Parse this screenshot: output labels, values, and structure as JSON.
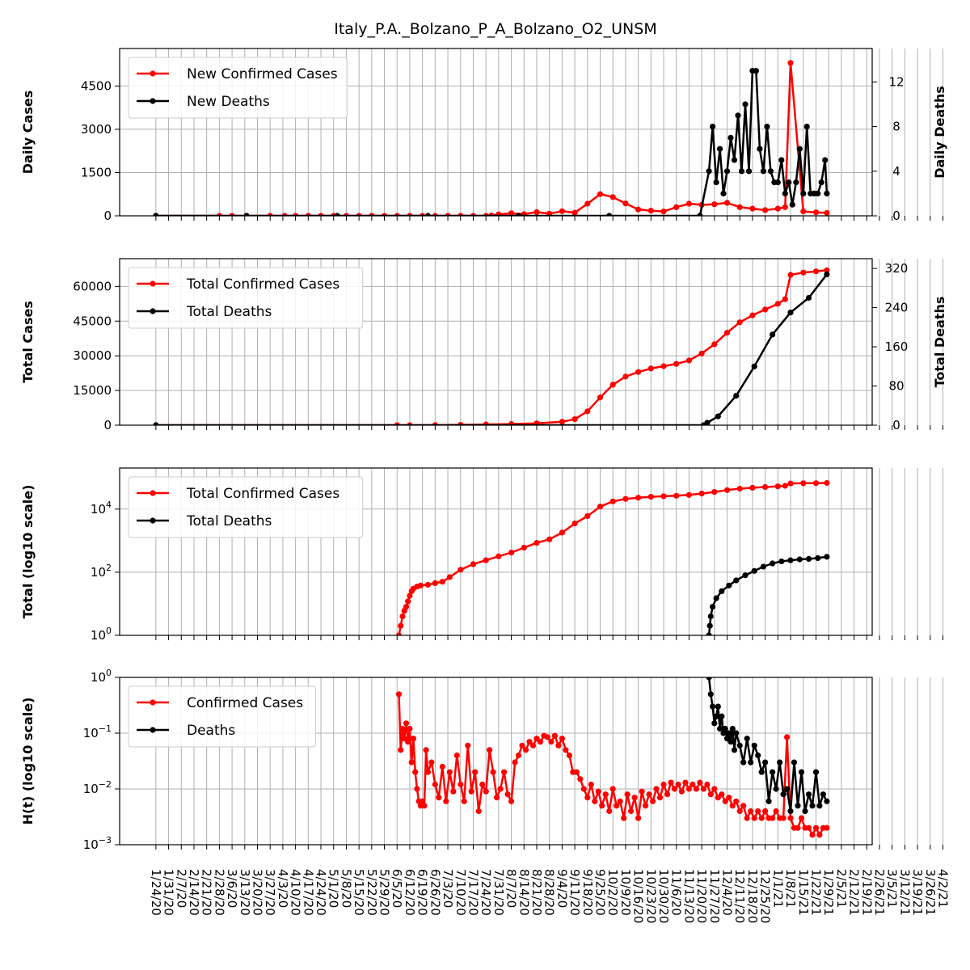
{
  "chart_data": {
    "title": "Italy_P.A._Bolzano_P_A_Bolzano_O2_UNSM",
    "x_dates": [
      "1/24/20",
      "1/31/20",
      "2/7/20",
      "2/14/20",
      "2/21/20",
      "2/28/20",
      "3/6/20",
      "3/13/20",
      "3/20/20",
      "3/27/20",
      "4/3/20",
      "4/10/20",
      "4/17/20",
      "4/24/20",
      "5/1/20",
      "5/8/20",
      "5/15/20",
      "5/22/20",
      "5/29/20",
      "6/5/20",
      "6/12/20",
      "6/19/20",
      "6/26/20",
      "7/3/20",
      "7/10/20",
      "7/17/20",
      "7/24/20",
      "7/31/20",
      "8/7/20",
      "8/14/20",
      "8/21/20",
      "8/28/20",
      "9/4/20",
      "9/11/20",
      "9/18/20",
      "9/25/20",
      "10/2/20",
      "10/9/20",
      "10/16/20",
      "10/23/20",
      "10/30/20",
      "11/6/20",
      "11/13/20",
      "11/20/20",
      "11/27/20",
      "12/4/20",
      "12/11/20",
      "12/18/20",
      "12/25/20",
      "1/1/21",
      "1/8/21",
      "1/15/21",
      "1/22/21",
      "1/29/21",
      "2/5/21",
      "2/12/21",
      "2/19/21",
      "2/26/21",
      "3/5/21",
      "3/12/21",
      "3/19/21",
      "3/26/21",
      "4/2/21"
    ],
    "panels": [
      {
        "type": "line",
        "ylabel": "Daily Cases",
        "ylabel_right": "Daily Deaths",
        "ylim": [
          0,
          5800
        ],
        "yticks": [
          "0",
          "1500",
          "3000",
          "4500"
        ],
        "ylim_right": [
          0,
          15
        ],
        "yticks_right": [
          "0",
          "4",
          "8",
          "12"
        ],
        "legend": [
          "New Confirmed Cases",
          "New Deaths"
        ],
        "series": [
          {
            "name": "New Confirmed Cases",
            "color": "#ff0000",
            "axis": "left",
            "x": [
              0,
              35,
              42,
              50,
              63,
              71,
              77,
              84,
              91,
              98,
              105,
              112,
              119,
              126,
              133,
              140,
              147,
              154,
              161,
              168,
              175,
              182,
              185,
              189,
              196,
              203,
              210,
              217,
              224,
              231,
              238,
              245,
              252,
              259,
              266,
              273,
              280,
              287,
              294,
              301,
              308,
              315,
              322,
              329,
              336,
              343,
              347,
              350,
              357,
              364,
              370
            ],
            "y": [
              0,
              0,
              0,
              0,
              0,
              0,
              0,
              0,
              0,
              0,
              0,
              0,
              0,
              0,
              0,
              0,
              0,
              0,
              0,
              0,
              0,
              0,
              10,
              50,
              90,
              60,
              130,
              75,
              160,
              110,
              420,
              750,
              650,
              430,
              220,
              180,
              150,
              300,
              420,
              380,
              400,
              450,
              300,
              250,
              200,
              250,
              300,
              5300,
              150,
              120,
              100
            ]
          },
          {
            "name": "New Deaths",
            "color": "#000000",
            "axis": "right",
            "x": [
              0,
              50,
              100,
              150,
              200,
              250,
              300,
              305,
              307,
              309,
              311,
              313,
              315,
              317,
              319,
              321,
              323,
              325,
              327,
              329,
              331,
              333,
              335,
              337,
              339,
              341,
              343,
              345,
              347,
              349,
              351,
              353,
              355,
              357,
              359,
              361,
              363,
              365,
              367,
              369,
              370
            ],
            "y": [
              0,
              0,
              0,
              0,
              0,
              0,
              0,
              4,
              8,
              3,
              6,
              2,
              4,
              7,
              5,
              9,
              4,
              10,
              4,
              13,
              13,
              6,
              4,
              8,
              4,
              3,
              3,
              5,
              2,
              3,
              1,
              3,
              6,
              2,
              8,
              2,
              2,
              2,
              3,
              5,
              2
            ]
          }
        ]
      },
      {
        "type": "line",
        "ylabel": "Total Cases",
        "ylabel_right": "Total Deaths",
        "ylim": [
          0,
          72000
        ],
        "yticks": [
          "0",
          "15000",
          "30000",
          "45000",
          "60000"
        ],
        "ylim_right": [
          0,
          340
        ],
        "yticks_right": [
          "0",
          "80",
          "160",
          "240",
          "320"
        ],
        "legend": [
          "Total Confirmed Cases",
          "Total Deaths"
        ],
        "series": [
          {
            "name": "Total Confirmed Cases",
            "color": "#ff0000",
            "axis": "left",
            "x": [
              0,
              133,
              140,
              154,
              168,
              182,
              196,
              210,
              224,
              231,
              238,
              245,
              252,
              259,
              266,
              273,
              280,
              287,
              294,
              301,
              308,
              315,
              322,
              329,
              336,
              343,
              347,
              350,
              357,
              364,
              370
            ],
            "y": [
              0,
              0,
              5,
              40,
              150,
              300,
              500,
              800,
              1500,
              2600,
              6000,
              12000,
              17500,
              21000,
              23000,
              24500,
              25500,
              26500,
              28000,
              31000,
              35000,
              40000,
              44500,
              47500,
              50000,
              52500,
              54500,
              65000,
              66000,
              66500,
              67000
            ]
          },
          {
            "name": "Total Deaths",
            "color": "#000000",
            "axis": "right",
            "x": [
              0,
              302,
              304,
              310,
              320,
              330,
              340,
              350,
              360,
              370
            ],
            "y": [
              0,
              0,
              5,
              18,
              60,
              120,
              185,
              230,
              260,
              308
            ]
          }
        ]
      },
      {
        "type": "line",
        "scale": "log",
        "ylabel": "Total (log10 scale)",
        "ylim": [
          1,
          200000
        ],
        "yticks": [
          "10^0",
          "10^2",
          "10^4"
        ],
        "legend": [
          "Total Confirmed Cases",
          "Total Deaths"
        ],
        "series": [
          {
            "name": "Total Confirmed Cases",
            "color": "#ff0000",
            "x": [
              134,
              135,
              136,
              137,
              138,
              139,
              140,
              141,
              142,
              144,
              146,
              150,
              154,
              158,
              162,
              168,
              175,
              182,
              189,
              196,
              203,
              210,
              217,
              224,
              231,
              238,
              245,
              252,
              259,
              266,
              273,
              280,
              287,
              294,
              301,
              308,
              315,
              322,
              329,
              336,
              343,
              347,
              350,
              357,
              364,
              370
            ],
            "y": [
              1,
              2,
              4,
              6,
              8,
              12,
              18,
              25,
              30,
              35,
              38,
              40,
              45,
              50,
              70,
              120,
              180,
              240,
              320,
              420,
              600,
              850,
              1100,
              1800,
              3500,
              6000,
              12000,
              17500,
              21000,
              23000,
              24500,
              25500,
              26500,
              28000,
              31000,
              35000,
              40000,
              44500,
              47500,
              50000,
              52500,
              54500,
              65000,
              66000,
              66500,
              67000
            ]
          },
          {
            "name": "Total Deaths",
            "color": "#000000",
            "x": [
              305,
              305.5,
              306,
              307,
              309,
              312,
              316,
              320,
              325,
              330,
              335,
              340,
              345,
              350,
              355,
              360,
              365,
              370
            ],
            "y": [
              1,
              2,
              4,
              8,
              15,
              25,
              38,
              55,
              80,
              110,
              150,
              190,
              220,
              240,
              255,
              265,
              280,
              308
            ]
          }
        ]
      },
      {
        "type": "line",
        "scale": "log",
        "ylabel": "H(t) (log10 scale)",
        "ylim": [
          0.001,
          1
        ],
        "yticks": [
          "10^-3",
          "10^-2",
          "10^-1",
          "10^0"
        ],
        "legend": [
          "Confirmed Cases",
          "Deaths"
        ],
        "series": [
          {
            "name": "Confirmed Cases",
            "color": "#ff0000",
            "x": [
              134,
              135,
              136,
              137,
              138,
              139,
              140,
              141,
              142,
              143,
              144,
              145,
              146,
              147,
              148,
              149,
              150,
              152,
              154,
              156,
              158,
              160,
              162,
              164,
              166,
              168,
              170,
              172,
              174,
              176,
              178,
              180,
              182,
              184,
              186,
              188,
              190,
              192,
              194,
              196,
              198,
              200,
              202,
              204,
              206,
              208,
              210,
              212,
              214,
              216,
              218,
              220,
              222,
              224,
              226,
              228,
              230,
              232,
              234,
              236,
              238,
              240,
              242,
              244,
              246,
              248,
              250,
              252,
              254,
              256,
              258,
              260,
              262,
              264,
              266,
              268,
              270,
              272,
              274,
              276,
              278,
              280,
              282,
              284,
              286,
              288,
              290,
              292,
              294,
              296,
              298,
              300,
              302,
              304,
              306,
              308,
              310,
              312,
              314,
              316,
              318,
              320,
              322,
              324,
              326,
              328,
              330,
              332,
              334,
              336,
              338,
              340,
              342,
              344,
              346,
              348,
              350,
              352,
              354,
              356,
              358,
              360,
              362,
              364,
              366,
              368,
              370
            ],
            "y": [
              0.5,
              0.05,
              0.12,
              0.08,
              0.15,
              0.07,
              0.12,
              0.03,
              0.08,
              0.02,
              0.01,
              0.006,
              0.005,
              0.006,
              0.005,
              0.05,
              0.02,
              0.03,
              0.012,
              0.007,
              0.025,
              0.006,
              0.02,
              0.009,
              0.04,
              0.012,
              0.006,
              0.06,
              0.009,
              0.02,
              0.004,
              0.012,
              0.009,
              0.05,
              0.02,
              0.007,
              0.01,
              0.02,
              0.008,
              0.006,
              0.03,
              0.04,
              0.06,
              0.05,
              0.07,
              0.06,
              0.08,
              0.07,
              0.09,
              0.085,
              0.07,
              0.09,
              0.06,
              0.08,
              0.05,
              0.04,
              0.02,
              0.02,
              0.015,
              0.01,
              0.007,
              0.012,
              0.006,
              0.009,
              0.005,
              0.008,
              0.004,
              0.01,
              0.005,
              0.006,
              0.003,
              0.008,
              0.004,
              0.007,
              0.003,
              0.009,
              0.005,
              0.008,
              0.006,
              0.01,
              0.007,
              0.012,
              0.008,
              0.013,
              0.01,
              0.012,
              0.009,
              0.013,
              0.01,
              0.012,
              0.01,
              0.013,
              0.01,
              0.012,
              0.008,
              0.01,
              0.007,
              0.008,
              0.006,
              0.007,
              0.005,
              0.006,
              0.004,
              0.005,
              0.003,
              0.004,
              0.003,
              0.004,
              0.003,
              0.004,
              0.003,
              0.003,
              0.004,
              0.003,
              0.003,
              0.085,
              0.003,
              0.002,
              0.002,
              0.003,
              0.002,
              0.002,
              0.0015,
              0.002,
              0.0015,
              0.002,
              0.002
            ]
          },
          {
            "name": "Deaths",
            "color": "#000000",
            "x": [
              305,
              306,
              307,
              308,
              309,
              310,
              311,
              312,
              313,
              314,
              315,
              316,
              317,
              318,
              319,
              320,
              322,
              324,
              326,
              328,
              330,
              332,
              334,
              336,
              338,
              340,
              342,
              344,
              346,
              348,
              350,
              352,
              354,
              356,
              358,
              360,
              362,
              364,
              366,
              368,
              370
            ],
            "y": [
              1,
              0.5,
              0.3,
              0.15,
              0.2,
              0.3,
              0.12,
              0.2,
              0.1,
              0.12,
              0.08,
              0.1,
              0.07,
              0.12,
              0.05,
              0.1,
              0.06,
              0.03,
              0.08,
              0.03,
              0.06,
              0.04,
              0.02,
              0.03,
              0.006,
              0.02,
              0.01,
              0.03,
              0.008,
              0.01,
              0.004,
              0.03,
              0.005,
              0.02,
              0.004,
              0.008,
              0.005,
              0.02,
              0.005,
              0.008,
              0.006
            ]
          }
        ]
      }
    ],
    "x_range": [
      -20,
      395
    ],
    "grid": true,
    "legend_position": "upper-left"
  }
}
